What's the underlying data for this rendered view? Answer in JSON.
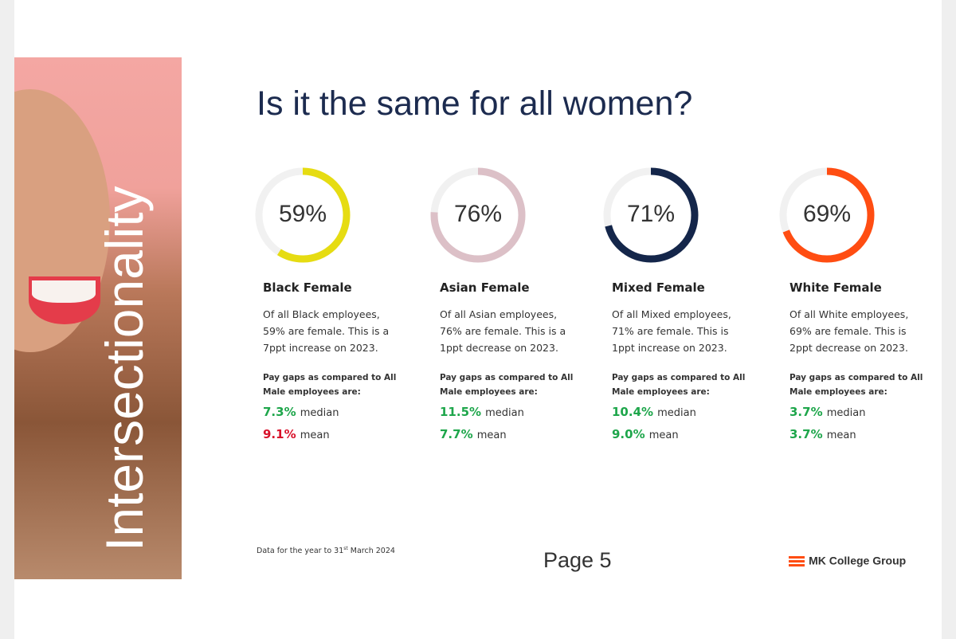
{
  "sidebar": {
    "label": "Intersectionality"
  },
  "title": "Is it the same for all women?",
  "groups": [
    {
      "percent": 59,
      "percent_label": "59%",
      "color": "#e6dc12",
      "name": "Black Female",
      "description": [
        "Of all Black employees,",
        "59% are female. This is a",
        "7ppt increase on 2023."
      ],
      "pay_gap_heading": [
        "Pay gaps as compared to All",
        "Male employees are:"
      ],
      "median": "7.3%",
      "median_color": "#1ea64b",
      "median_label": "median",
      "mean": "9.1%",
      "mean_color": "#d8112a",
      "mean_label": "mean"
    },
    {
      "percent": 76,
      "percent_label": "76%",
      "color": "#dcc0c7",
      "name": "Asian Female",
      "description": [
        "Of all Asian employees,",
        "76% are female. This is a",
        "1ppt decrease on 2023."
      ],
      "pay_gap_heading": [
        "Pay gaps as compared to All",
        "Male employees are:"
      ],
      "median": "11.5%",
      "median_color": "#1ea64b",
      "median_label": "median",
      "mean": "7.7%",
      "mean_color": "#1ea64b",
      "mean_label": "mean"
    },
    {
      "percent": 71,
      "percent_label": "71%",
      "color": "#14264a",
      "name": "Mixed Female",
      "description": [
        "Of all Mixed employees,",
        "71% are female. This is",
        "1ppt increase on 2023."
      ],
      "pay_gap_heading": [
        "Pay gaps as compared to All",
        "Male employees are:"
      ],
      "median": "10.4%",
      "median_color": "#1ea64b",
      "median_label": "median",
      "mean": "9.0%",
      "mean_color": "#1ea64b",
      "mean_label": "mean"
    },
    {
      "percent": 69,
      "percent_label": "69%",
      "color": "#ff4d12",
      "name": "White Female",
      "description": [
        "Of all White employees,",
        "69% are female. This is",
        "2ppt decrease on 2023."
      ],
      "pay_gap_heading": [
        "Pay gaps as compared to All",
        "Male employees are:"
      ],
      "median": "3.7%",
      "median_color": "#1ea64b",
      "median_label": "median",
      "mean": "3.7%",
      "mean_color": "#1ea64b",
      "mean_label": "mean"
    }
  ],
  "footer": {
    "note": [
      "Data for the year to 31",
      "st",
      " March 2024"
    ],
    "page": "Page 5",
    "logo": "MK College Group"
  }
}
